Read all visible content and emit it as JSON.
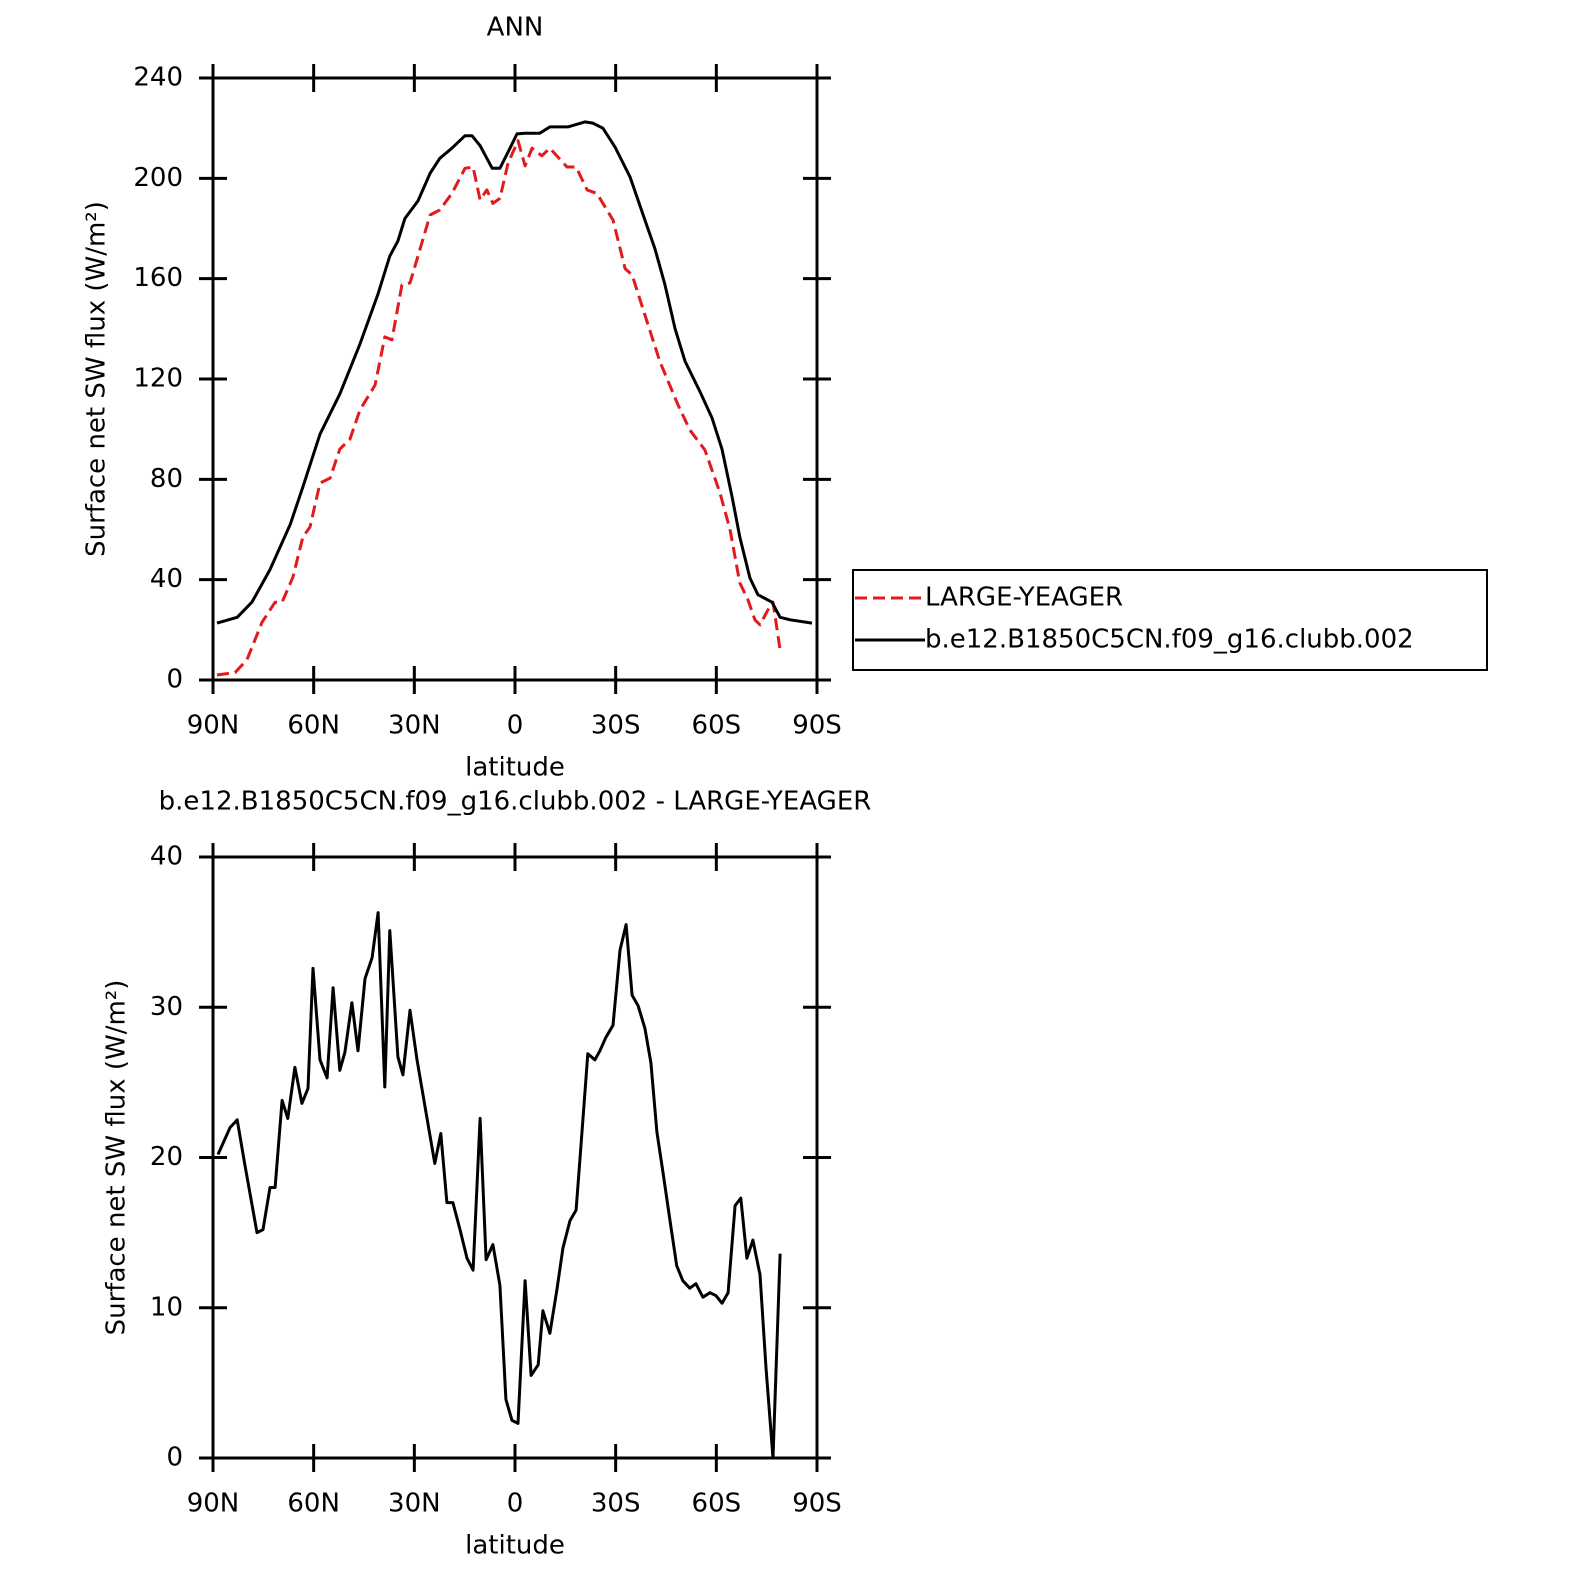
{
  "chart_data": [
    {
      "type": "line",
      "title": "ANN",
      "xlabel": "latitude",
      "ylabel": "Surface net SW flux (W/m²)",
      "xlim": [
        90,
        -90
      ],
      "xticks": [
        {
          "value": 90,
          "label": "90N"
        },
        {
          "value": 60,
          "label": "60N"
        },
        {
          "value": 30,
          "label": "30N"
        },
        0,
        {
          "value": -30,
          "label": "30S"
        },
        {
          "value": -60,
          "label": "60S"
        },
        {
          "value": -90,
          "label": "90S"
        }
      ],
      "ylim": [
        0,
        240
      ],
      "yticks": [
        0,
        40,
        80,
        120,
        160,
        200,
        240
      ],
      "legend": "right",
      "series": [
        {
          "name": "LARGE-YEAGER",
          "color": "#e31a1c",
          "dash": true,
          "x": [
            88.8,
            83.4,
            79.9,
            75.4,
            71.5,
            69.4,
            66.2,
            63.2,
            61.1,
            58.1,
            55.1,
            52.2,
            49.2,
            46.2,
            41.7,
            38.8,
            36.7,
            33.7,
            31.3,
            25.3,
            22.4,
            18.8,
            14.9,
            12.5,
            10.4,
            8.4,
            6.6,
            4.5,
            2.1,
            -0.9,
            -3,
            -5.1,
            -8,
            -10.4,
            -15.5,
            -18.2,
            -21.5,
            -24.4,
            -29.2,
            -32.8,
            -34.9,
            -38.7,
            -43.2,
            -48.6,
            -52.1,
            -56.6,
            -61.1,
            -64.1,
            -67,
            -69.4,
            -71.5,
            -73,
            -75.4,
            -76.9,
            -79
          ],
          "values": [
            2,
            3,
            8,
            23,
            31,
            31,
            41,
            57,
            61,
            78.5,
            80.5,
            92,
            96,
            107.7,
            117.6,
            136.8,
            135.6,
            157.5,
            158.3,
            185.4,
            187.4,
            194,
            204,
            204.5,
            191.4,
            195.4,
            190,
            192,
            206,
            215,
            205,
            212,
            209,
            212,
            204.5,
            204.5,
            195.4,
            194,
            183.4,
            164,
            161.5,
            145.5,
            126.8,
            109.6,
            99.7,
            91.7,
            74.6,
            59.8,
            38.7,
            32,
            24,
            22,
            28,
            31,
            12
          ]
        },
        {
          "name": "b.e12.B1850C5CN.f09_g16.clubb.002",
          "color": "#000000",
          "dash": false,
          "x": [
            88.8,
            82.8,
            78.4,
            73,
            67,
            63.2,
            58.1,
            52.2,
            46.2,
            40.8,
            37.3,
            34.9,
            32.8,
            28.9,
            25.3,
            22.4,
            18.8,
            14.9,
            12.8,
            10.4,
            6.8,
            4.5,
            1.5,
            -0.6,
            -3,
            -7.4,
            -10.4,
            -15.8,
            -20.8,
            -23.2,
            -26.2,
            -29.8,
            -34.3,
            -38.7,
            -41.7,
            -44.7,
            -47.7,
            -50.7,
            -55.1,
            -58.7,
            -61.7,
            -64.7,
            -67,
            -70,
            -72.4,
            -76.6,
            -79,
            -82,
            -88.5
          ],
          "values": [
            22.7,
            25,
            31,
            44,
            62,
            77,
            98,
            114,
            134,
            154,
            169,
            175,
            184,
            191,
            202,
            208,
            212,
            217,
            217,
            213,
            204,
            204,
            212,
            217.7,
            218,
            218,
            220.5,
            220.5,
            222.5,
            222,
            220,
            212.5,
            200.5,
            183.4,
            172,
            157.5,
            140,
            127,
            115,
            104.5,
            92,
            73,
            57,
            40.7,
            34,
            31,
            25,
            24,
            22.7
          ]
        }
      ]
    },
    {
      "type": "line",
      "title": "b.e12.B1850C5CN.f09_g16.clubb.002 - LARGE-YEAGER",
      "xlabel": "latitude",
      "ylabel": "Surface net SW flux (W/m²)",
      "xlim": [
        90,
        -90
      ],
      "xticks": [
        {
          "value": 90,
          "label": "90N"
        },
        {
          "value": 60,
          "label": "60N"
        },
        {
          "value": 30,
          "label": "30N"
        },
        0,
        {
          "value": -30,
          "label": "30S"
        },
        {
          "value": -60,
          "label": "60S"
        },
        {
          "value": -90,
          "label": "90S"
        }
      ],
      "ylim": [
        0,
        40
      ],
      "yticks": [
        0,
        10,
        20,
        30,
        40
      ],
      "series": [
        {
          "color": "#000000",
          "dash": false,
          "x": [
            88.5,
            84.9,
            82.8,
            80.5,
            76.9,
            75.1,
            73,
            71.5,
            69.4,
            67.7,
            65.6,
            63.5,
            61.7,
            60.2,
            58.1,
            56,
            54.2,
            52.2,
            50.7,
            48.6,
            46.8,
            44.7,
            42.6,
            40.8,
            38.8,
            37.3,
            34.9,
            33.4,
            31.3,
            29.2,
            26,
            23.9,
            22.1,
            20.3,
            18.5,
            16.4,
            14.3,
            12.5,
            10.4,
            8.6,
            6.6,
            4.5,
            2.7,
            0.9,
            -0.9,
            -3,
            -4.8,
            -6.9,
            -8.3,
            -10.4,
            -12.5,
            -14.3,
            -16.4,
            -18.2,
            -20,
            -21.7,
            -23.8,
            -25.3,
            -27.1,
            -29.2,
            -31.3,
            -33.1,
            -34.9,
            -36.7,
            -38.7,
            -40.5,
            -42.3,
            -44.1,
            -46.2,
            -48.2,
            -50,
            -52.1,
            -53.9,
            -56,
            -58.1,
            -59.9,
            -61.7,
            -63.5,
            -65.6,
            -67.3,
            -69.1,
            -70.9,
            -73,
            -74.8,
            -76.9,
            -79
          ],
          "values": [
            20.2,
            22,
            22.5,
            19.5,
            15,
            15.2,
            18,
            18,
            23.8,
            22.6,
            26,
            23.6,
            24.6,
            32.6,
            26.5,
            25.3,
            31.3,
            25.8,
            27,
            30.3,
            27.1,
            31.9,
            33.3,
            36.3,
            24.7,
            35.1,
            26.7,
            25.5,
            29.8,
            26.5,
            22.3,
            19.6,
            21.6,
            17,
            17,
            15.2,
            13.3,
            12.5,
            22.6,
            13.2,
            14.2,
            11.5,
            3.9,
            2.5,
            2.3,
            11.8,
            5.5,
            6.2,
            9.8,
            8.3,
            11.2,
            14,
            15.8,
            16.5,
            21.8,
            26.9,
            26.5,
            27.1,
            28,
            28.8,
            33.8,
            35.5,
            30.8,
            30.1,
            28.6,
            26.3,
            21.7,
            19,
            15.8,
            12.8,
            11.8,
            11.3,
            11.6,
            10.7,
            11,
            10.8,
            10.3,
            11,
            16.8,
            17.3,
            13.3,
            14.5,
            12.2,
            6,
            0,
            13.6
          ]
        }
      ]
    }
  ]
}
